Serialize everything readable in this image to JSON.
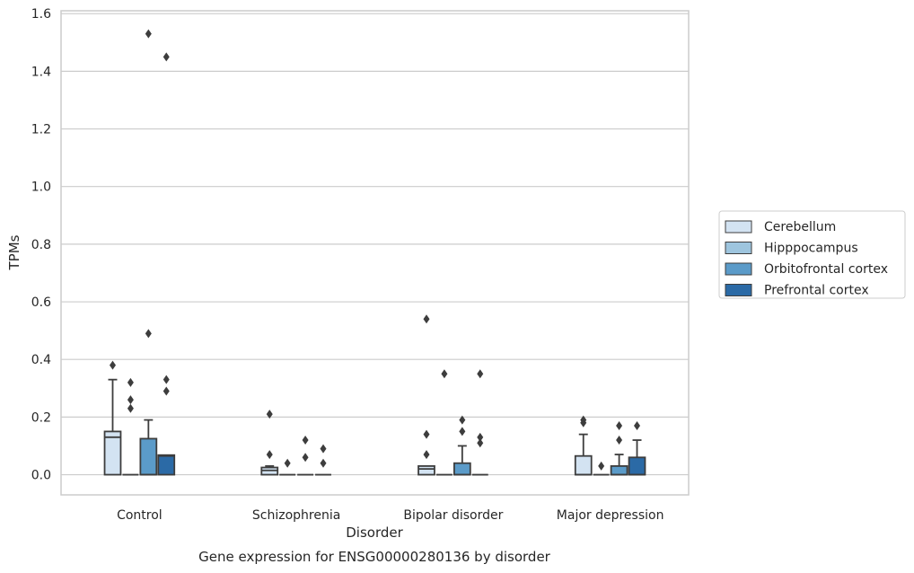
{
  "chart_data": {
    "type": "box",
    "caption": "Gene expression for ENSG00000280136 by disorder",
    "xlabel": "Disorder",
    "ylabel": "TPMs",
    "ylim": [
      -0.07,
      1.61
    ],
    "yticks": [
      "0.0",
      "0.2",
      "0.4",
      "0.6",
      "0.8",
      "1.0",
      "1.2",
      "1.4",
      "1.6"
    ],
    "grid": "horizontal",
    "legend_position": "right",
    "categories": [
      "Control",
      "Schizophrenia",
      "Bipolar disorder",
      "Major depression"
    ],
    "series": [
      {
        "name": "Cerebellum",
        "color": "#d3e3f2",
        "boxes": [
          {
            "q1": 0.0,
            "median": 0.13,
            "q3": 0.15,
            "whisker_low": 0.0,
            "whisker_high": 0.33,
            "outliers": [
              0.38
            ]
          },
          {
            "q1": 0.0,
            "median": 0.015,
            "q3": 0.025,
            "whisker_low": 0.0,
            "whisker_high": 0.03,
            "outliers": [
              0.07,
              0.21
            ]
          },
          {
            "q1": 0.0,
            "median": 0.02,
            "q3": 0.03,
            "whisker_low": 0.0,
            "whisker_high": 0.03,
            "outliers": [
              0.07,
              0.14,
              0.54
            ]
          },
          {
            "q1": 0.0,
            "median": 0.0,
            "q3": 0.065,
            "whisker_low": 0.0,
            "whisker_high": 0.14,
            "outliers": [
              0.18,
              0.19
            ]
          }
        ]
      },
      {
        "name": "Hipppocampus",
        "color": "#9ec5de",
        "boxes": [
          {
            "q1": 0.0,
            "median": 0.0,
            "q3": 0.0,
            "whisker_low": 0.0,
            "whisker_high": 0.0,
            "outliers": [
              0.23,
              0.26,
              0.32
            ]
          },
          {
            "q1": 0.0,
            "median": 0.0,
            "q3": 0.0,
            "whisker_low": 0.0,
            "whisker_high": 0.0,
            "outliers": [
              0.04
            ]
          },
          {
            "q1": 0.0,
            "median": 0.0,
            "q3": 0.0,
            "whisker_low": 0.0,
            "whisker_high": 0.0,
            "outliers": [
              0.35
            ]
          },
          {
            "q1": 0.0,
            "median": 0.0,
            "q3": 0.0,
            "whisker_low": 0.0,
            "whisker_high": 0.0,
            "outliers": [
              0.03
            ]
          }
        ]
      },
      {
        "name": "Orbitofrontal cortex",
        "color": "#5b9bc9",
        "boxes": [
          {
            "q1": 0.0,
            "median": 0.0,
            "q3": 0.125,
            "whisker_low": 0.0,
            "whisker_high": 0.19,
            "outliers": [
              0.49,
              1.53
            ]
          },
          {
            "q1": 0.0,
            "median": 0.0,
            "q3": 0.0,
            "whisker_low": 0.0,
            "whisker_high": 0.0,
            "outliers": [
              0.06,
              0.12
            ]
          },
          {
            "q1": 0.0,
            "median": 0.0,
            "q3": 0.04,
            "whisker_low": 0.0,
            "whisker_high": 0.1,
            "outliers": [
              0.15,
              0.19
            ]
          },
          {
            "q1": 0.0,
            "median": 0.0,
            "q3": 0.03,
            "whisker_low": 0.0,
            "whisker_high": 0.07,
            "outliers": [
              0.12,
              0.17
            ]
          }
        ]
      },
      {
        "name": "Prefrontal cortex",
        "color": "#2b6aa6",
        "boxes": [
          {
            "q1": 0.0,
            "median": 0.065,
            "q3": 0.068,
            "whisker_low": 0.0,
            "whisker_high": 0.068,
            "outliers": [
              0.29,
              0.33,
              1.45
            ]
          },
          {
            "q1": 0.0,
            "median": 0.0,
            "q3": 0.0,
            "whisker_low": 0.0,
            "whisker_high": 0.0,
            "outliers": [
              0.04,
              0.09
            ]
          },
          {
            "q1": 0.0,
            "median": 0.0,
            "q3": 0.0,
            "whisker_low": 0.0,
            "whisker_high": 0.0,
            "outliers": [
              0.11,
              0.13,
              0.35
            ]
          },
          {
            "q1": 0.0,
            "median": 0.0,
            "q3": 0.06,
            "whisker_low": 0.0,
            "whisker_high": 0.12,
            "outliers": [
              0.17
            ]
          }
        ]
      }
    ]
  }
}
